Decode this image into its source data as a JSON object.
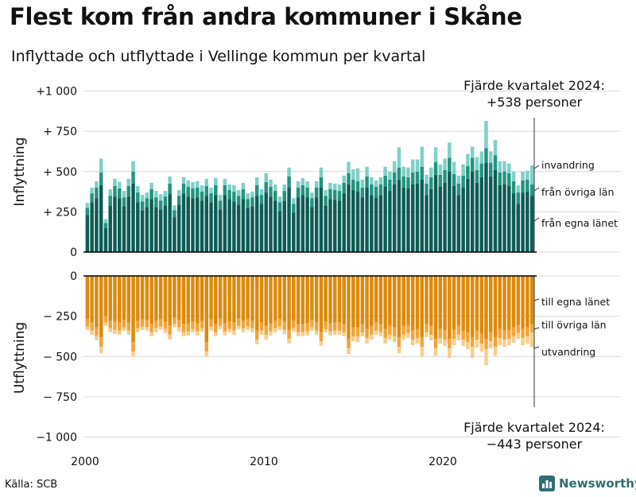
{
  "header": {
    "title": "Flest kom från andra kommuner i Skåne",
    "subtitle": "Inflyttade och utflyttade i Vellinge kommun per kvartal"
  },
  "footer": {
    "source": "Källa: SCB",
    "brand": "Newsworthy",
    "brand_icon": "bar-chart-logo-icon",
    "brand_color": "#2f6f72"
  },
  "colors": {
    "in_county": "#0d5c55",
    "in_other": "#23937f",
    "in_immigration": "#7fd0c9",
    "out_county": "#dd8a0c",
    "out_other": "#f2a43a",
    "out_emigration": "#f8cd8c",
    "grid": "#d9d9d9",
    "axis": "#000000"
  },
  "chart_data": {
    "type": "bar",
    "stacked": true,
    "x_label": "",
    "x_ticks": [
      "2000",
      "2010",
      "2020"
    ],
    "grid": true,
    "annotations": {
      "top": [
        "Fjärde kvartalet 2024:",
        "+538 personer"
      ],
      "bottom": [
        "Fjärde kvartalet 2024:",
        "−443 personer"
      ]
    },
    "panels": [
      {
        "name": "Inflyttning",
        "y_label": "Inflyttning",
        "ylim": [
          0,
          1000
        ],
        "y_ticks": [
          {
            "value": 1000,
            "label": "+1 000"
          },
          {
            "value": 750,
            "label": "+ 750"
          },
          {
            "value": 500,
            "label": "+ 500"
          },
          {
            "value": 250,
            "label": "+ 250"
          },
          {
            "value": 0,
            "label": "0"
          }
        ],
        "series": [
          {
            "name": "från egna länet",
            "values": [
              230,
              310,
              335,
              415,
              150,
              290,
              345,
              335,
              285,
              345,
              425,
              310,
              260,
              280,
              330,
              280,
              265,
              290,
              360,
              215,
              295,
              365,
              345,
              335,
              340,
              320,
              350,
              310,
              355,
              265,
              355,
              330,
              315,
              295,
              330,
              275,
              285,
              350,
              300,
              370,
              345,
              320,
              255,
              320,
              400,
              245,
              340,
              355,
              340,
              280,
              340,
              400,
              290,
              330,
              325,
              320,
              365,
              420,
              385,
              375,
              340,
              400,
              355,
              340,
              355,
              405,
              380,
              420,
              450,
              400,
              395,
              420,
              425,
              450,
              355,
              390,
              480,
              405,
              430,
              500,
              410,
              355,
              400,
              455,
              500,
              430,
              465,
              555,
              470,
              510,
              415,
              420,
              410,
              365,
              300,
              370,
              375,
              350
            ]
          },
          {
            "name": "från övriga län",
            "values": [
              45,
              55,
              65,
              80,
              30,
              60,
              65,
              60,
              55,
              65,
              75,
              60,
              55,
              55,
              60,
              60,
              55,
              55,
              65,
              45,
              55,
              60,
              60,
              60,
              60,
              55,
              60,
              55,
              60,
              55,
              60,
              55,
              60,
              55,
              60,
              55,
              55,
              65,
              55,
              65,
              60,
              60,
              55,
              60,
              70,
              55,
              60,
              60,
              60,
              55,
              60,
              65,
              60,
              60,
              60,
              60,
              65,
              70,
              65,
              65,
              60,
              70,
              65,
              65,
              65,
              70,
              70,
              75,
              75,
              70,
              70,
              75,
              75,
              80,
              70,
              75,
              80,
              75,
              80,
              85,
              75,
              70,
              75,
              80,
              85,
              80,
              85,
              90,
              85,
              90,
              80,
              80,
              80,
              75,
              70,
              75,
              75,
              70
            ]
          },
          {
            "name": "invandring",
            "values": [
              30,
              35,
              40,
              85,
              25,
              40,
              45,
              40,
              40,
              45,
              65,
              40,
              40,
              35,
              40,
              40,
              40,
              35,
              45,
              30,
              35,
              40,
              40,
              40,
              40,
              40,
              45,
              35,
              45,
              35,
              40,
              35,
              40,
              35,
              40,
              35,
              35,
              50,
              35,
              55,
              45,
              40,
              35,
              40,
              55,
              35,
              40,
              45,
              40,
              35,
              40,
              60,
              35,
              40,
              40,
              40,
              45,
              70,
              65,
              80,
              50,
              60,
              45,
              40,
              45,
              55,
              50,
              70,
              125,
              60,
              60,
              80,
              75,
              125,
              55,
              60,
              90,
              65,
              70,
              95,
              75,
              50,
              70,
              75,
              70,
              80,
              75,
              170,
              70,
              95,
              70,
              65,
              60,
              60,
              45,
              55,
              55,
              118
            ]
          }
        ]
      },
      {
        "name": "Utflyttning",
        "y_label": "Utflyttning",
        "ylim": [
          -1000,
          0
        ],
        "y_ticks": [
          {
            "value": 0,
            "label": "0"
          },
          {
            "value": -250,
            "label": "− 250"
          },
          {
            "value": -500,
            "label": "− 500"
          },
          {
            "value": -750,
            "label": "− 750"
          },
          {
            "value": -1000,
            "label": "−1 000"
          }
        ],
        "series": [
          {
            "name": "till egna länet",
            "values": [
              -270,
              -290,
              -320,
              -380,
              -250,
              -280,
              -285,
              -290,
              -275,
              -290,
              -410,
              -280,
              -270,
              -275,
              -300,
              -280,
              -270,
              -285,
              -310,
              -260,
              -275,
              -300,
              -295,
              -285,
              -295,
              -280,
              -410,
              -270,
              -300,
              -265,
              -295,
              -285,
              -290,
              -265,
              -280,
              -270,
              -280,
              -340,
              -290,
              -310,
              -295,
              -280,
              -270,
              -285,
              -335,
              -280,
              -300,
              -300,
              -295,
              -275,
              -290,
              -350,
              -285,
              -295,
              -290,
              -290,
              -300,
              -390,
              -320,
              -320,
              -300,
              -330,
              -310,
              -290,
              -300,
              -330,
              -310,
              -320,
              -380,
              -310,
              -305,
              -340,
              -330,
              -380,
              -300,
              -310,
              -390,
              -330,
              -340,
              -390,
              -335,
              -310,
              -340,
              -350,
              -380,
              -340,
              -360,
              -390,
              -350,
              -380,
              -330,
              -340,
              -335,
              -320,
              -305,
              -330,
              -320,
              -300
            ]
          },
          {
            "name": "till övriga län",
            "values": [
              -45,
              -50,
              -50,
              -60,
              -40,
              -45,
              -50,
              -50,
              -45,
              -50,
              -60,
              -45,
              -45,
              -45,
              -50,
              -45,
              -45,
              -45,
              -55,
              -40,
              -45,
              -50,
              -50,
              -45,
              -50,
              -45,
              -60,
              -45,
              -50,
              -45,
              -50,
              -45,
              -50,
              -45,
              -45,
              -45,
              -45,
              -55,
              -50,
              -55,
              -50,
              -45,
              -45,
              -50,
              -55,
              -45,
              -50,
              -50,
              -50,
              -45,
              -50,
              -55,
              -45,
              -50,
              -50,
              -50,
              -50,
              -60,
              -55,
              -55,
              -50,
              -55,
              -55,
              -50,
              -50,
              -55,
              -55,
              -55,
              -60,
              -55,
              -50,
              -55,
              -55,
              -60,
              -50,
              -55,
              -60,
              -55,
              -55,
              -60,
              -55,
              -55,
              -55,
              -60,
              -60,
              -55,
              -60,
              -65,
              -55,
              -60,
              -55,
              -55,
              -55,
              -55,
              -50,
              -55,
              -55,
              -50
            ]
          },
          {
            "name": "utvandring",
            "values": [
              -20,
              -25,
              -30,
              -40,
              -20,
              -25,
              -25,
              -25,
              -20,
              -25,
              -30,
              -25,
              -20,
              -20,
              -25,
              -25,
              -20,
              -25,
              -30,
              -20,
              -25,
              -25,
              -25,
              -20,
              -25,
              -20,
              -30,
              -25,
              -25,
              -20,
              -25,
              -20,
              -25,
              -20,
              -25,
              -20,
              -25,
              -30,
              -25,
              -30,
              -25,
              -25,
              -20,
              -25,
              -30,
              -20,
              -25,
              -25,
              -25,
              -20,
              -25,
              -30,
              -20,
              -25,
              -25,
              -25,
              -25,
              -35,
              -30,
              -35,
              -25,
              -35,
              -30,
              -25,
              -25,
              -35,
              -30,
              -35,
              -40,
              -30,
              -30,
              -35,
              -35,
              -60,
              -30,
              -35,
              -45,
              -35,
              -40,
              -60,
              -40,
              -35,
              -40,
              -45,
              -70,
              -50,
              -50,
              -100,
              -45,
              -55,
              -45,
              -45,
              -40,
              -40,
              -35,
              -45,
              -45,
              -93
            ]
          }
        ]
      }
    ]
  }
}
